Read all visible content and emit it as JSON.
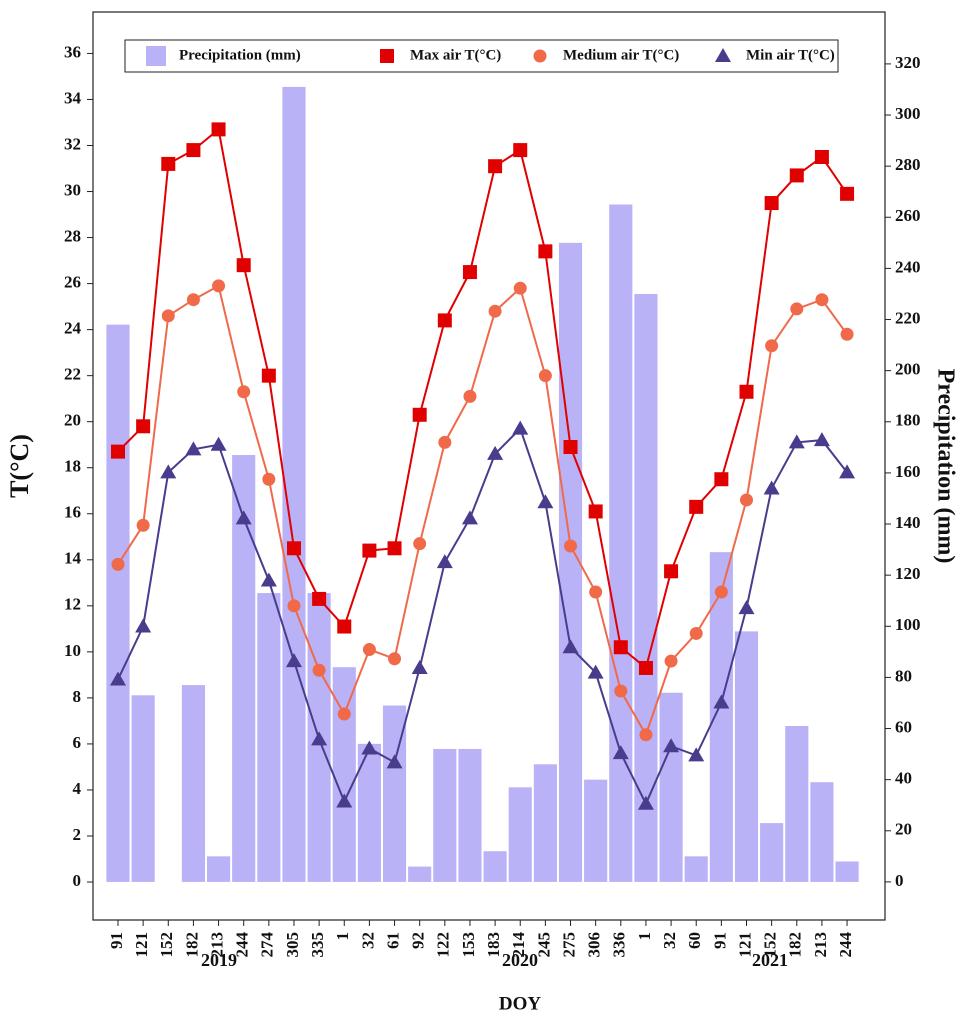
{
  "chart_data": {
    "type": "bar-line",
    "x_label": "DOY",
    "y_label": "T(°C)",
    "y2_label": "Precipitation (mm)",
    "categories": [
      "91",
      "121",
      "152",
      "182",
      "213",
      "244",
      "274",
      "305",
      "335",
      "1",
      "32",
      "61",
      "92",
      "122",
      "153",
      "183",
      "214",
      "245",
      "275",
      "306",
      "336",
      "1",
      "32",
      "60",
      "91",
      "121",
      "152",
      "182",
      "213",
      "244"
    ],
    "category_groups": [
      "2019",
      "2020",
      "2021"
    ],
    "ylim": [
      -1.65,
      37.8
    ],
    "yticks": [
      0,
      2,
      4,
      6,
      8,
      10,
      12,
      14,
      16,
      18,
      20,
      22,
      24,
      26,
      28,
      30,
      32,
      34,
      36
    ],
    "y2lim": [
      -14.9,
      340.3
    ],
    "y2ticks": [
      0,
      20,
      40,
      60,
      80,
      100,
      120,
      140,
      160,
      180,
      200,
      220,
      240,
      260,
      280,
      300,
      320
    ],
    "series": [
      {
        "name": "Precipitation (mm)",
        "kind": "bar",
        "axis": "y2",
        "color": "#b9b2f6",
        "values": [
          218,
          73,
          0,
          77,
          10,
          167,
          113,
          311,
          113,
          84,
          54,
          69,
          6,
          52,
          52,
          12,
          37,
          46,
          250,
          40,
          265,
          230,
          74,
          10,
          129,
          98,
          23,
          61,
          39,
          8
        ]
      },
      {
        "name": "Max air T(°C)",
        "kind": "line",
        "marker": "square",
        "color": "#e00000",
        "values": [
          18.7,
          19.8,
          31.2,
          31.8,
          32.7,
          26.8,
          22.0,
          14.5,
          12.3,
          11.1,
          14.4,
          14.5,
          20.3,
          24.4,
          26.5,
          31.1,
          31.8,
          27.4,
          18.9,
          16.1,
          10.2,
          9.3,
          13.5,
          16.3,
          17.5,
          21.3,
          29.5,
          30.7,
          31.5,
          29.9
        ]
      },
      {
        "name": "Medium air T(°C)",
        "kind": "line",
        "marker": "circle",
        "color": "#f06a4a",
        "values": [
          13.8,
          15.5,
          24.6,
          25.3,
          25.9,
          21.3,
          17.5,
          12.0,
          9.2,
          7.3,
          10.1,
          9.7,
          14.7,
          19.1,
          21.1,
          24.8,
          25.8,
          22.0,
          14.6,
          12.6,
          8.3,
          6.4,
          9.6,
          10.8,
          12.6,
          16.6,
          23.3,
          24.9,
          25.3,
          23.8
        ]
      },
      {
        "name": "Min air T(°C)",
        "kind": "line",
        "marker": "triangle",
        "color": "#483c8c",
        "values": [
          8.8,
          11.1,
          17.8,
          18.8,
          19.0,
          15.8,
          13.1,
          9.6,
          6.2,
          3.5,
          5.8,
          5.2,
          9.3,
          13.9,
          15.8,
          18.6,
          19.7,
          16.5,
          10.2,
          9.1,
          5.6,
          3.4,
          5.9,
          5.5,
          7.8,
          11.9,
          17.1,
          19.1,
          19.2,
          17.8
        ]
      }
    ]
  }
}
